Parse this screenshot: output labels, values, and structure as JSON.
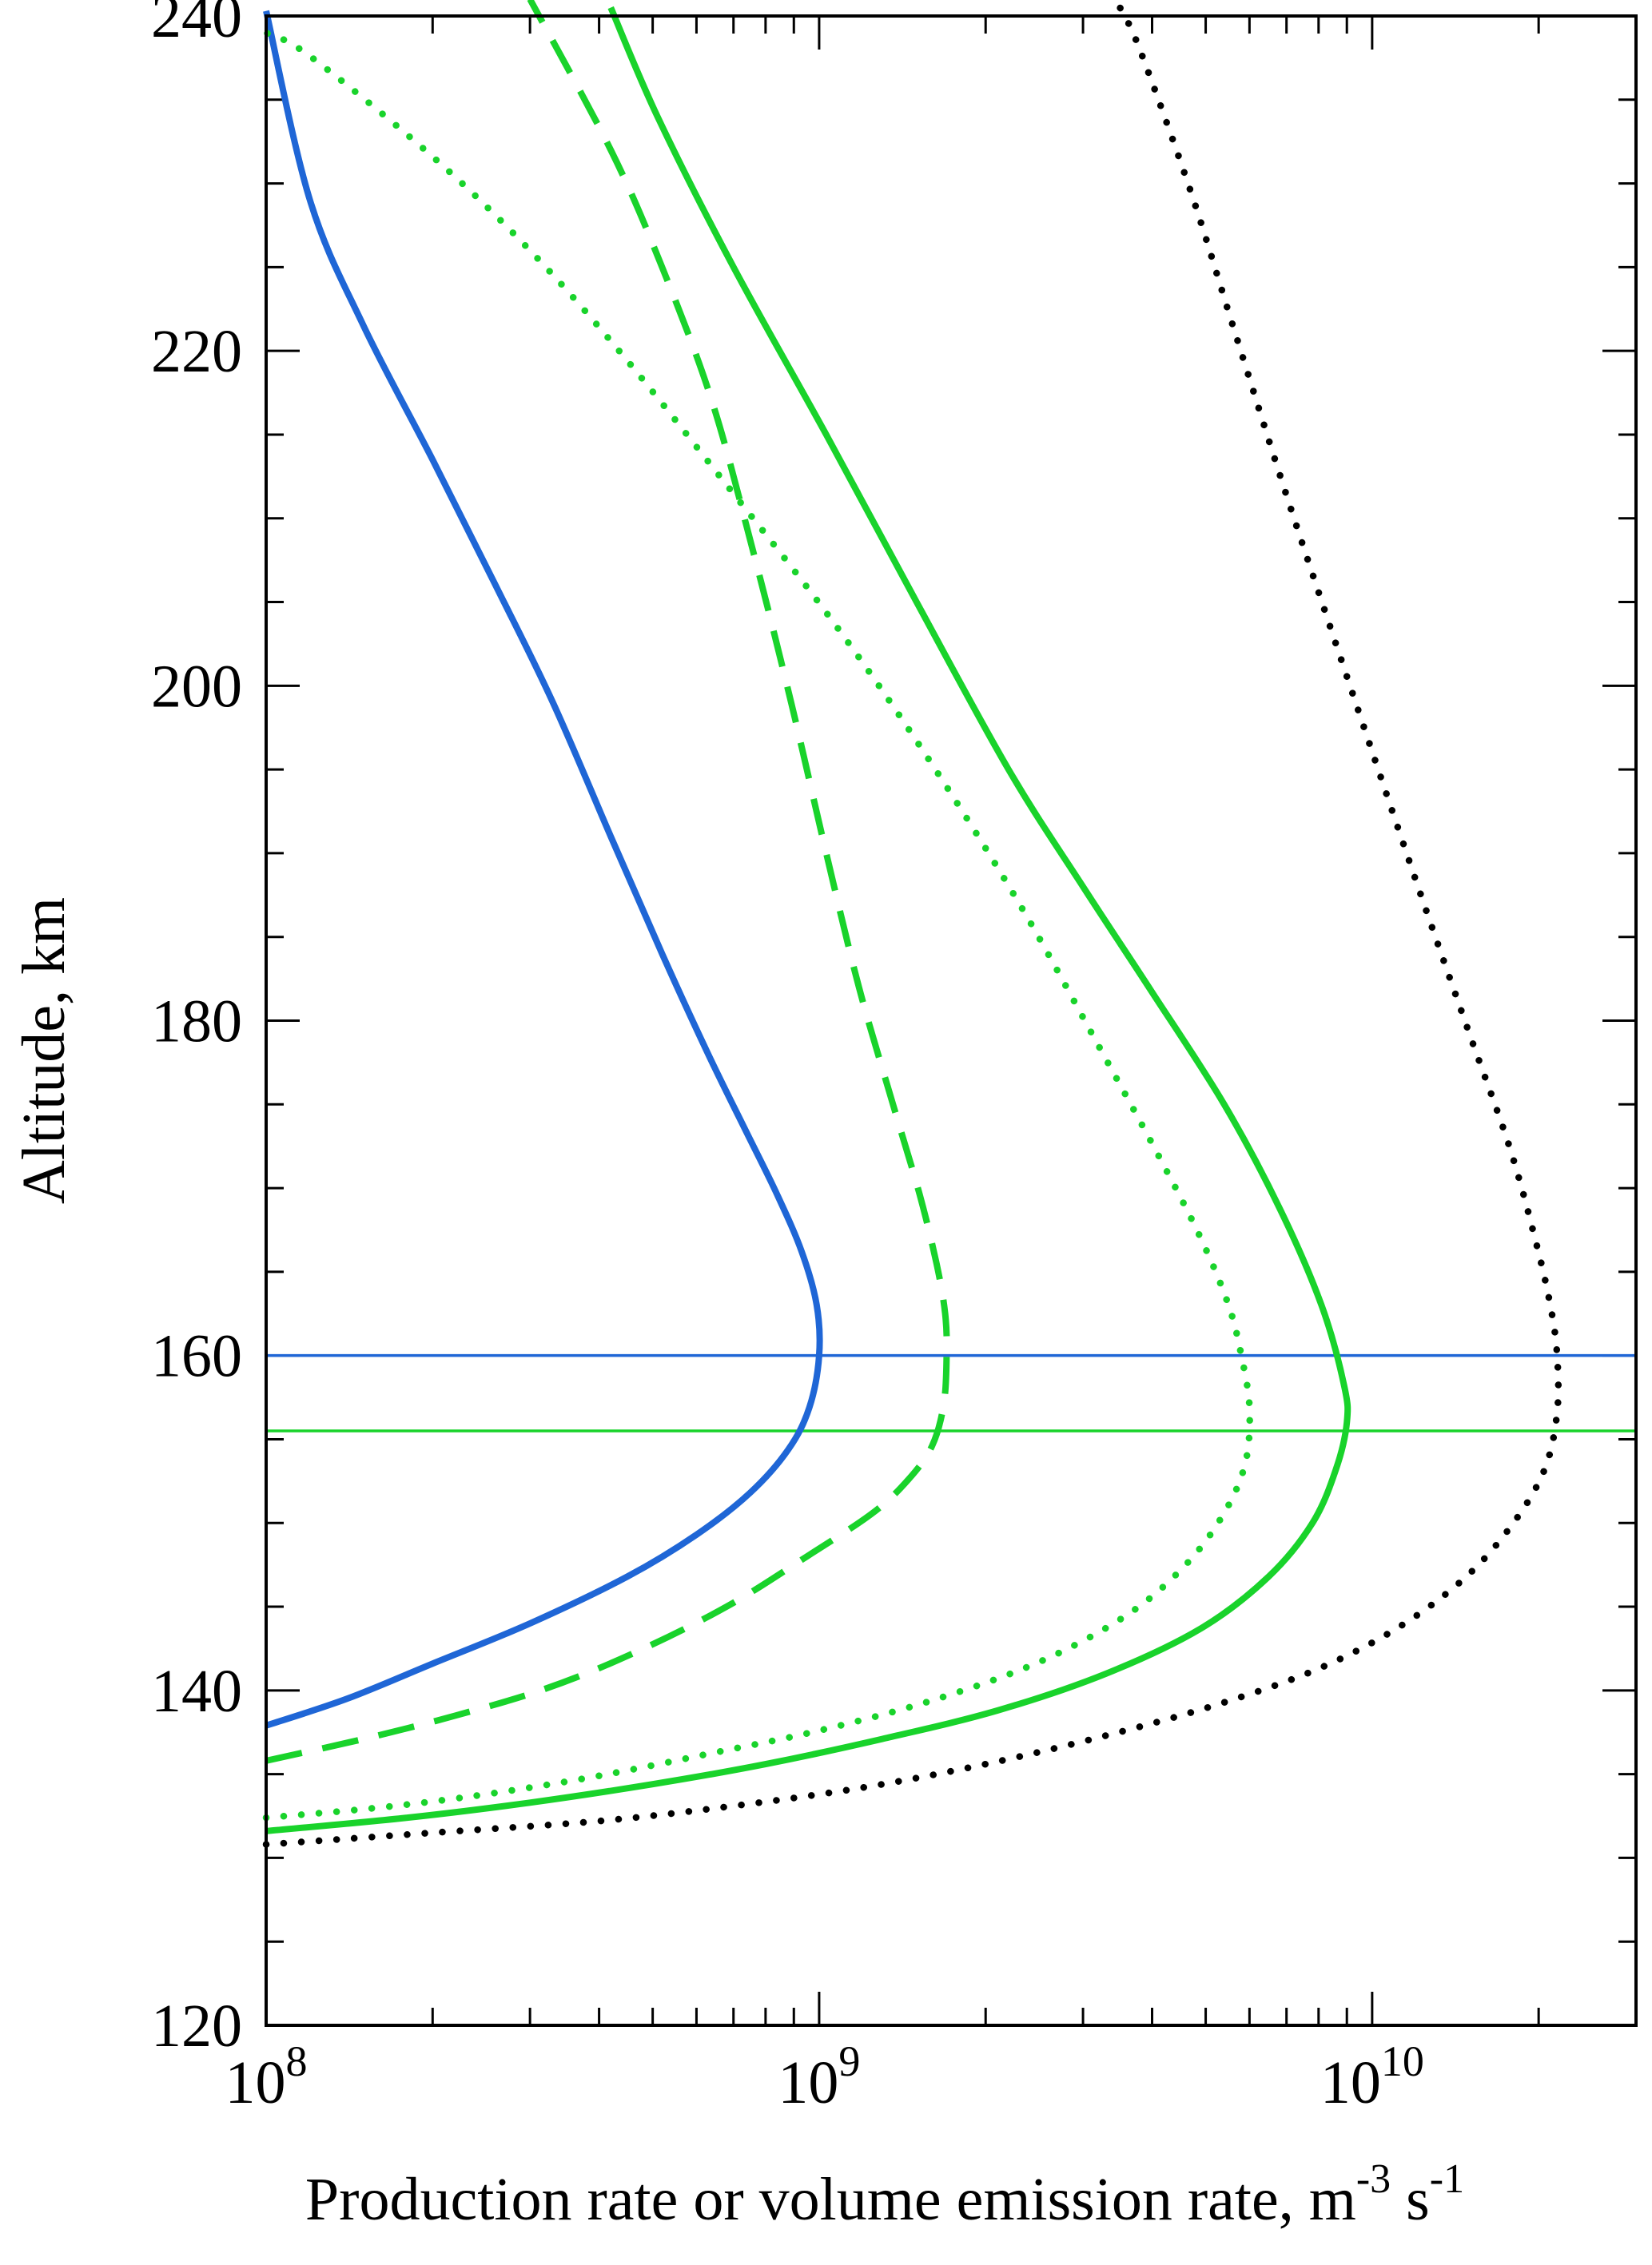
{
  "chart_data": {
    "type": "line",
    "title": "",
    "xlabel": "Production rate or volume emission rate, m",
    "xlabel_sup1": "-3",
    "xlabel_mid": " s",
    "xlabel_sup2": "-1",
    "ylabel": "Altitude, km",
    "x_scale": "log",
    "xlim": [
      100000000.0,
      30000000000.0
    ],
    "ylim": [
      120,
      240
    ],
    "x_ticks": [
      {
        "value": 100000000.0,
        "base": "10",
        "exp": "8"
      },
      {
        "value": 1000000000.0,
        "base": "10",
        "exp": "9"
      },
      {
        "value": 10000000000.0,
        "base": "10",
        "exp": "10"
      }
    ],
    "y_ticks": [
      {
        "value": 120,
        "label": "120"
      },
      {
        "value": 140,
        "label": "140"
      },
      {
        "value": 160,
        "label": "160"
      },
      {
        "value": 180,
        "label": "180"
      },
      {
        "value": 200,
        "label": "200"
      },
      {
        "value": 220,
        "label": "220"
      },
      {
        "value": 240,
        "label": "240"
      }
    ],
    "grid": false,
    "legend": "none",
    "horizontal_lines": [
      {
        "y": 160,
        "color": "#1f66d6"
      },
      {
        "y": 155.5,
        "color": "#19d32b"
      }
    ],
    "series": [
      {
        "style": "solid",
        "color": "#1f66d6",
        "points": [
          [
            100000000.0,
            137.9
          ],
          [
            140000000.0,
            139.5
          ],
          [
            200000000.0,
            141.6
          ],
          [
            300000000.0,
            144
          ],
          [
            450000000.0,
            146.8
          ],
          [
            600000000.0,
            149.3
          ],
          [
            750000000.0,
            151.8
          ],
          [
            880000000.0,
            154.4
          ],
          [
            960000000.0,
            156.9
          ],
          [
            1000000000.0,
            160
          ],
          [
            990000000.0,
            163
          ],
          [
            930000000.0,
            166.2
          ],
          [
            840000000.0,
            169.6
          ],
          [
            740000000.0,
            173.3
          ],
          [
            630000000.0,
            178
          ],
          [
            520000000.0,
            184
          ],
          [
            420000000.0,
            191
          ],
          [
            330000000.0,
            199
          ],
          [
            260000000.0,
            206
          ],
          [
            200000000.0,
            213.5
          ],
          [
            150000000.0,
            221.5
          ],
          [
            120000000.0,
            229
          ],
          [
            100000000.0,
            240.3
          ]
        ]
      },
      {
        "style": "dashed",
        "color": "#19d32b",
        "points": [
          [
            100000000.0,
            135.8
          ],
          [
            150000000.0,
            137.1
          ],
          [
            220000000.0,
            138.5
          ],
          [
            320000000.0,
            140.1
          ],
          [
            460000000.0,
            142.2
          ],
          [
            680000000.0,
            145
          ],
          [
            950000000.0,
            148
          ],
          [
            1250000000.0,
            150.6
          ],
          [
            1450000000.0,
            152.6
          ],
          [
            1600000000.0,
            154.6
          ],
          [
            1680000000.0,
            157.1
          ],
          [
            1700000000.0,
            160
          ],
          [
            1690000000.0,
            162.5
          ],
          [
            1630000000.0,
            165.5
          ],
          [
            1520000000.0,
            169.6
          ],
          [
            1360000000.0,
            175
          ],
          [
            1180000000.0,
            182
          ],
          [
            1030000000.0,
            190
          ],
          [
            890000000.0,
            199
          ],
          [
            760000000.0,
            208
          ],
          [
            640000000.0,
            217
          ],
          [
            520000000.0,
            225
          ],
          [
            420000000.0,
            232
          ],
          [
            300000000.0,
            241
          ]
        ]
      },
      {
        "style": "dotted",
        "color": "#19d32b",
        "points": [
          [
            100000000.0,
            132.4
          ],
          [
            160000000.0,
            133
          ],
          [
            250000000.0,
            133.8
          ],
          [
            400000000.0,
            134.9
          ],
          [
            650000000.0,
            136.3
          ],
          [
            1000000000.0,
            137.6
          ],
          [
            1600000000.0,
            139.4
          ],
          [
            2500000000.0,
            141.7
          ],
          [
            3600000000.0,
            144.5
          ],
          [
            4600000000.0,
            147.5
          ],
          [
            5400000000.0,
            150.6
          ],
          [
            5900000000.0,
            153.6
          ],
          [
            6000000000.0,
            156.9
          ],
          [
            5800000000.0,
            160
          ],
          [
            5500000000.0,
            163
          ],
          [
            4900000000.0,
            167
          ],
          [
            4100000000.0,
            172
          ],
          [
            3200000000.0,
            178.5
          ],
          [
            2300000000.0,
            187
          ],
          [
            1550000000.0,
            196
          ],
          [
            1050000000.0,
            204
          ],
          [
            680000000.0,
            212
          ],
          [
            440000000.0,
            219.8
          ],
          [
            300000000.0,
            226
          ],
          [
            200000000.0,
            231.6
          ],
          [
            120000000.0,
            237.6
          ],
          [
            100000000.0,
            239
          ]
        ]
      },
      {
        "style": "solid",
        "color": "#19d32b",
        "points": [
          [
            100000000.0,
            131.6
          ],
          [
            180000000.0,
            132.4
          ],
          [
            300000000.0,
            133.3
          ],
          [
            500000000.0,
            134.4
          ],
          [
            800000000.0,
            135.6
          ],
          [
            1300000000.0,
            137.1
          ],
          [
            2100000000.0,
            138.8
          ],
          [
            3300000000.0,
            141
          ],
          [
            4900000000.0,
            143.7
          ],
          [
            6500000000.0,
            146.8
          ],
          [
            7800000000.0,
            150
          ],
          [
            8600000000.0,
            153.2
          ],
          [
            9000000000.0,
            156
          ],
          [
            8900000000.0,
            158.2
          ],
          [
            8100000000.0,
            163
          ],
          [
            6800000000.0,
            168.8
          ],
          [
            5400000000.0,
            175
          ],
          [
            4000000000.0,
            181.7
          ],
          [
            3000000000.0,
            188
          ],
          [
            2200000000.0,
            195
          ],
          [
            1500000000.0,
            205
          ],
          [
            1030000000.0,
            215
          ],
          [
            700000000.0,
            225
          ],
          [
            510000000.0,
            234
          ],
          [
            420000000.0,
            240.5
          ]
        ]
      },
      {
        "style": "dotted",
        "color": "#000000",
        "points": [
          [
            100000000.0,
            130.8
          ],
          [
            200000000.0,
            131.5
          ],
          [
            400000000.0,
            132.2
          ],
          [
            700000000.0,
            133.1
          ],
          [
            1200000000.0,
            134.2
          ],
          [
            2000000000.0,
            135.6
          ],
          [
            3300000000.0,
            137.3
          ],
          [
            5300000000.0,
            139.2
          ],
          [
            8000000000.0,
            141.3
          ],
          [
            11200000000.0,
            143.8
          ],
          [
            14800000000.0,
            146.8
          ],
          [
            18000000000.0,
            150
          ],
          [
            20500000000.0,
            153.2
          ],
          [
            21600000000.0,
            156.6
          ],
          [
            21600000000.0,
            160
          ],
          [
            21000000000.0,
            163
          ],
          [
            19700000000.0,
            167
          ],
          [
            17700000000.0,
            172.5
          ],
          [
            15000000000.0,
            179.2
          ],
          [
            12700000000.0,
            186
          ],
          [
            10500000000.0,
            194
          ],
          [
            8500000000.0,
            203
          ],
          [
            6900000000.0,
            212
          ],
          [
            5600000000.0,
            221.5
          ],
          [
            4700000000.0,
            229.5
          ],
          [
            3800000000.0,
            238
          ],
          [
            3500000000.0,
            240.5
          ]
        ]
      }
    ]
  }
}
